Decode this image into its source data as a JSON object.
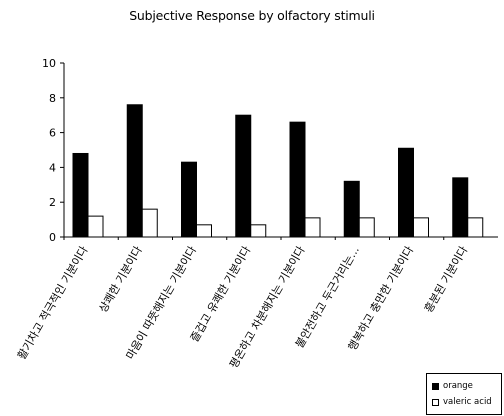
{
  "chart_data": {
    "type": "bar",
    "title": "Subjective Response by olfactory stimuli",
    "xlabel": "",
    "ylabel": "",
    "ylim": [
      0,
      10
    ],
    "yticks": [
      0,
      2,
      4,
      6,
      8,
      10
    ],
    "categories": [
      "활기차고 적극적인 기분이다",
      "상쾌한 기분이다",
      "마음이 따뜻해지는 기분이다",
      "즐겁고 유쾌한 기분이다",
      "평온하고 차분해지는 기분이다",
      "불안전하고 두근거리는...",
      "행복하고 충만한 기분이다",
      "흥분된 기분이다"
    ],
    "series": [
      {
        "name": "orange",
        "color": "#000000",
        "values": [
          4.8,
          7.6,
          4.3,
          7.0,
          6.6,
          3.2,
          5.1,
          3.4
        ]
      },
      {
        "name": "valeric acid",
        "color": "#ffffff",
        "values": [
          1.2,
          1.6,
          0.7,
          0.7,
          1.1,
          1.1,
          1.1,
          1.1
        ]
      }
    ],
    "grid": false,
    "legend_position": "bottom-right"
  }
}
